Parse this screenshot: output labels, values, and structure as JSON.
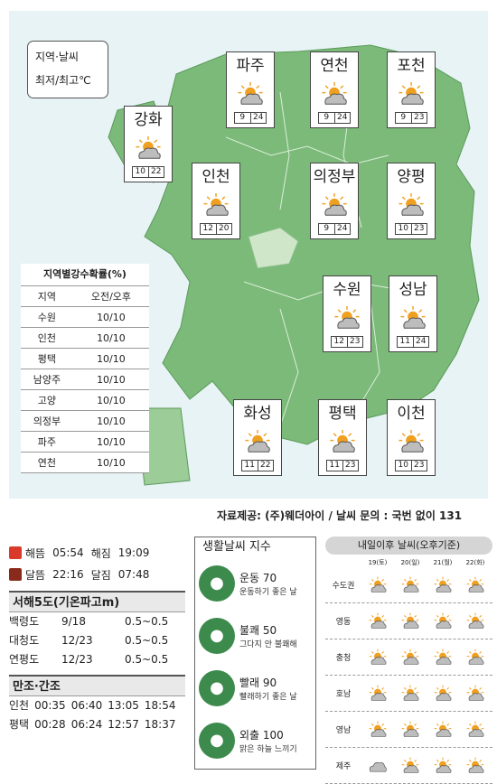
{
  "legend": {
    "line1": "지역·날씨",
    "line2": "최저/최고℃"
  },
  "cities": [
    {
      "name": "파주",
      "min": "9",
      "max": "24"
    },
    {
      "name": "연천",
      "min": "9",
      "max": "24"
    },
    {
      "name": "포천",
      "min": "9",
      "max": "23"
    },
    {
      "name": "강화",
      "min": "10",
      "max": "22"
    },
    {
      "name": "인천",
      "min": "12",
      "max": "20"
    },
    {
      "name": "의정부",
      "min": "9",
      "max": "24"
    },
    {
      "name": "양평",
      "min": "10",
      "max": "23"
    },
    {
      "name": "수원",
      "min": "12",
      "max": "23"
    },
    {
      "name": "성남",
      "min": "11",
      "max": "24"
    },
    {
      "name": "화성",
      "min": "11",
      "max": "22"
    },
    {
      "name": "평택",
      "min": "11",
      "max": "23"
    },
    {
      "name": "이천",
      "min": "10",
      "max": "23"
    }
  ],
  "rain": {
    "title": "지역별강수확률(%)",
    "headers": [
      "지역",
      "오전/오후"
    ],
    "rows": [
      [
        "수원",
        "10/10"
      ],
      [
        "인천",
        "10/10"
      ],
      [
        "평택",
        "10/10"
      ],
      [
        "남양주",
        "10/10"
      ],
      [
        "고양",
        "10/10"
      ],
      [
        "의정부",
        "10/10"
      ],
      [
        "파주",
        "10/10"
      ],
      [
        "연천",
        "10/10"
      ]
    ]
  },
  "source": "자료제공: (주)웨더아이 / 날씨 문의 : 국번 없이 131",
  "sun": {
    "row1": [
      "해뜸",
      "05:54",
      "해짐",
      "19:09"
    ],
    "row2": [
      "달뜸",
      "22:16",
      "달짐",
      "07:48"
    ]
  },
  "wave": {
    "title": "서해5도(기온파고m)",
    "rows": [
      [
        "백령도",
        "9/18",
        "0.5~0.5"
      ],
      [
        "대청도",
        "12/23",
        "0.5~0.5"
      ],
      [
        "연평도",
        "12/23",
        "0.5~0.5"
      ]
    ]
  },
  "tide": {
    "title": "만조·간조",
    "rows": [
      [
        "인천",
        "00:35",
        "06:40",
        "13:05",
        "18:54"
      ],
      [
        "평택",
        "00:28",
        "06:24",
        "12:57",
        "18:37"
      ]
    ]
  },
  "life": {
    "title": "생활날씨 지수",
    "items": [
      {
        "label": "운동 70",
        "desc": "운동하기 좋은 날"
      },
      {
        "label": "불쾌 50",
        "desc": "그다지 안 불쾌해"
      },
      {
        "label": "빨래 90",
        "desc": "빨래하기 좋은 날"
      },
      {
        "label": "외출 100",
        "desc": "맑은 하늘 느끼기"
      }
    ]
  },
  "forecast": {
    "title": "내일이후 날씨(오후기준)",
    "days": [
      "19(토)",
      "20(일)",
      "21(월)",
      "22(화)"
    ],
    "regions": [
      "수도권",
      "영동",
      "충청",
      "호남",
      "영남",
      "제주"
    ]
  },
  "colors": {
    "land": "#7cba7a",
    "urban": "#cfe6c8",
    "sea": "#e8f3f6",
    "sun": "#f0a020"
  }
}
